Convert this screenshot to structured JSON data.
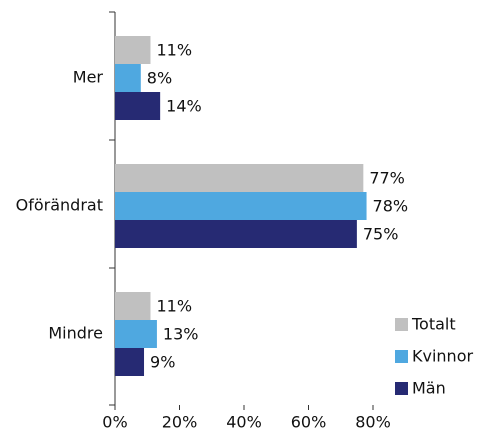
{
  "chart_data": {
    "type": "bar",
    "orientation": "horizontal",
    "categories": [
      "Mer",
      "Oförändrat",
      "Mindre"
    ],
    "series": [
      {
        "name": "Totalt",
        "color": "#c0c0c0",
        "values": [
          11,
          77,
          11
        ],
        "value_labels": [
          "11%",
          "77%",
          "11%"
        ]
      },
      {
        "name": "Kvinnor",
        "color": "#4fa8e0",
        "values": [
          8,
          78,
          13
        ],
        "value_labels": [
          "8%",
          "78%",
          "13%"
        ]
      },
      {
        "name": "Män",
        "color": "#262a73",
        "values": [
          14,
          75,
          9
        ],
        "value_labels": [
          "14%",
          "75%",
          "9%"
        ]
      }
    ],
    "xlim": [
      0,
      80
    ],
    "xticks": [
      {
        "value": 0,
        "label": "0%"
      },
      {
        "value": 20,
        "label": "20%"
      },
      {
        "value": 40,
        "label": "40%"
      },
      {
        "value": 60,
        "label": "60%"
      },
      {
        "value": 80,
        "label": "80%"
      }
    ],
    "legend": "lower right"
  }
}
